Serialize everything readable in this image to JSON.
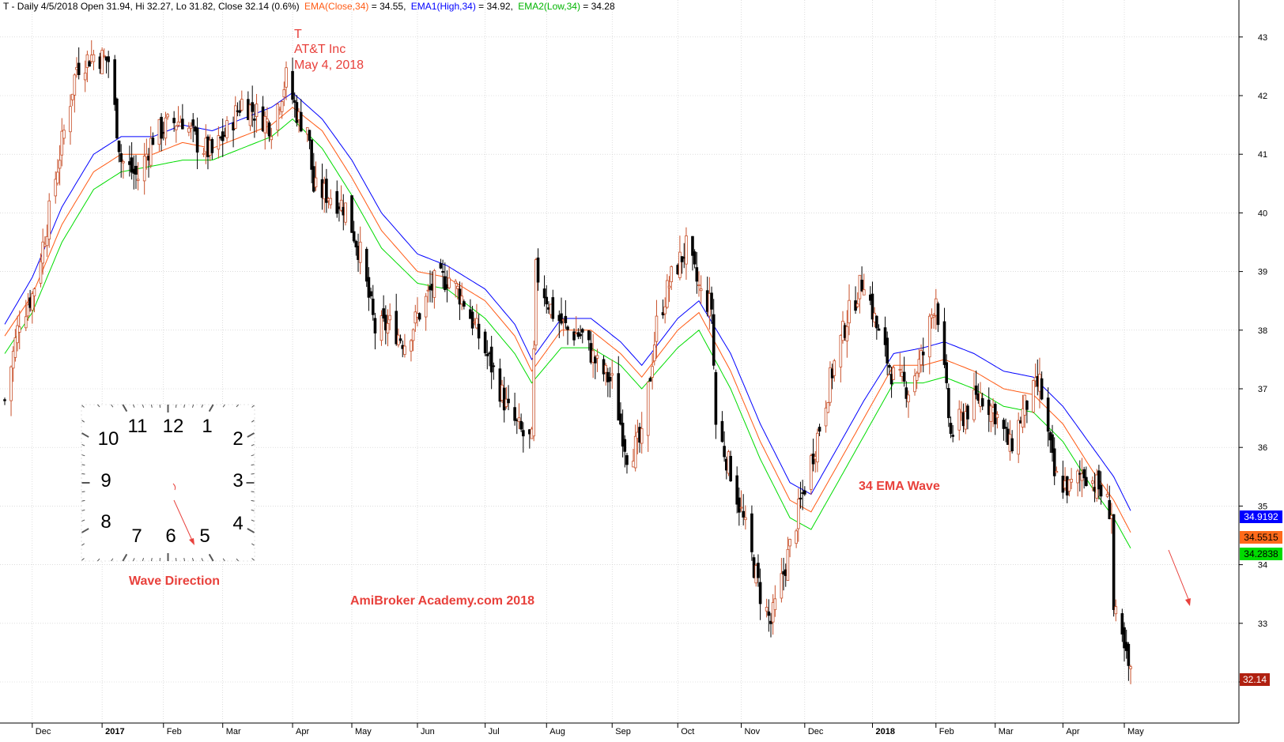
{
  "header": {
    "ticker_info": "T - Daily 4/5/2018 Open 31.94, Hi 32.27, Lo 31.82, Close 32.14 (0.6%)",
    "ema_close_label": "EMA(Close,34)",
    "ema_close_value": " = 34.55,",
    "ema_high_label": "EMA1(High,34)",
    "ema_high_value": " = 34.92,",
    "ema_low_label": "EMA2(Low,34)",
    "ema_low_value": " = 34.28"
  },
  "annotations": {
    "symbol": "T",
    "company": "AT&T Inc",
    "date": "May 4, 2018",
    "wave_label": "34 EMA Wave",
    "watermark": "AmiBroker Academy.com   2018",
    "wave_direction": "Wave Direction"
  },
  "clock": {
    "numbers": [
      "12",
      "1",
      "2",
      "3",
      "4",
      "5",
      "6",
      "7",
      "8",
      "9",
      "10",
      "11"
    ]
  },
  "badges": {
    "ema_high": "34.9192",
    "ema_close": "34.5515",
    "ema_low": "34.2838",
    "last_close": "32.14"
  },
  "colors": {
    "ema_high": "#0000ff",
    "ema_close": "#ff5a14",
    "ema_low": "#00dc00",
    "up_candle": "#c8502a",
    "down_candle": "#000000",
    "annotation": "#e8413c",
    "badge_high": "#0000ff",
    "badge_close": "#ff6a1a",
    "badge_low": "#00dc00",
    "badge_last": "#b02010"
  },
  "chart_data": {
    "type": "candlestick",
    "symbol": "T",
    "ylim": [
      31.4,
      43.4
    ],
    "grid": true,
    "y_ticks": [
      32,
      33,
      34,
      35,
      36,
      37,
      38,
      39,
      40,
      41,
      42,
      43
    ],
    "x_ticks": [
      {
        "date": "2016-12-01",
        "label": "Dec",
        "bold": false
      },
      {
        "date": "2017-01-03",
        "label": "2017",
        "bold": true
      },
      {
        "date": "2017-02-01",
        "label": "Feb",
        "bold": false
      },
      {
        "date": "2017-03-01",
        "label": "Mar",
        "bold": false
      },
      {
        "date": "2017-04-03",
        "label": "Apr",
        "bold": false
      },
      {
        "date": "2017-05-01",
        "label": "May",
        "bold": false
      },
      {
        "date": "2017-06-01",
        "label": "Jun",
        "bold": false
      },
      {
        "date": "2017-07-03",
        "label": "Jul",
        "bold": false
      },
      {
        "date": "2017-08-01",
        "label": "Aug",
        "bold": false
      },
      {
        "date": "2017-09-01",
        "label": "Sep",
        "bold": false
      },
      {
        "date": "2017-10-02",
        "label": "Oct",
        "bold": false
      },
      {
        "date": "2017-11-01",
        "label": "Nov",
        "bold": false
      },
      {
        "date": "2017-12-01",
        "label": "Dec",
        "bold": false
      },
      {
        "date": "2018-01-02",
        "label": "2018",
        "bold": true
      },
      {
        "date": "2018-02-01",
        "label": "Feb",
        "bold": false
      },
      {
        "date": "2018-03-01",
        "label": "Mar",
        "bold": false
      },
      {
        "date": "2018-04-02",
        "label": "Apr",
        "bold": false
      },
      {
        "date": "2018-05-01",
        "label": "May",
        "bold": false
      }
    ],
    "x_range": [
      "2016-11-18",
      "2018-06-01"
    ],
    "close_path": [
      [
        "2016-11-18",
        36.8
      ],
      [
        "2016-11-25",
        38.2
      ],
      [
        "2016-12-01",
        38.6
      ],
      [
        "2016-12-08",
        39.8
      ],
      [
        "2016-12-15",
        41.2
      ],
      [
        "2016-12-22",
        42.5
      ],
      [
        "2016-12-30",
        42.7
      ],
      [
        "2017-01-06",
        42.6
      ],
      [
        "2017-01-12",
        40.9
      ],
      [
        "2017-01-20",
        40.6
      ],
      [
        "2017-01-27",
        41.3
      ],
      [
        "2017-02-03",
        41.5
      ],
      [
        "2017-02-10",
        41.6
      ],
      [
        "2017-02-17",
        41.2
      ],
      [
        "2017-02-24",
        41.0
      ],
      [
        "2017-03-03",
        41.4
      ],
      [
        "2017-03-10",
        41.9
      ],
      [
        "2017-03-17",
        41.7
      ],
      [
        "2017-03-24",
        41.5
      ],
      [
        "2017-03-31",
        42.3
      ],
      [
        "2017-04-06",
        41.6
      ],
      [
        "2017-04-10",
        41.5
      ],
      [
        "2017-04-13",
        40.4
      ],
      [
        "2017-04-21",
        40.3
      ],
      [
        "2017-04-28",
        40.1
      ],
      [
        "2017-05-05",
        39.3
      ],
      [
        "2017-05-12",
        38.0
      ],
      [
        "2017-05-19",
        38.1
      ],
      [
        "2017-05-26",
        37.8
      ],
      [
        "2017-06-02",
        38.3
      ],
      [
        "2017-06-09",
        38.8
      ],
      [
        "2017-06-16",
        38.9
      ],
      [
        "2017-06-23",
        38.5
      ],
      [
        "2017-06-30",
        37.9
      ],
      [
        "2017-07-07",
        37.3
      ],
      [
        "2017-07-14",
        36.6
      ],
      [
        "2017-07-21",
        36.2
      ],
      [
        "2017-07-25",
        36.1
      ],
      [
        "2017-07-27",
        39.0
      ],
      [
        "2017-08-04",
        38.3
      ],
      [
        "2017-08-11",
        38.0
      ],
      [
        "2017-08-18",
        37.9
      ],
      [
        "2017-08-25",
        37.4
      ],
      [
        "2017-09-01",
        37.1
      ],
      [
        "2017-09-08",
        35.9
      ],
      [
        "2017-09-15",
        36.1
      ],
      [
        "2017-09-22",
        38.1
      ],
      [
        "2017-09-29",
        38.9
      ],
      [
        "2017-10-06",
        39.4
      ],
      [
        "2017-10-13",
        38.6
      ],
      [
        "2017-10-18",
        38.4
      ],
      [
        "2017-10-20",
        36.4
      ],
      [
        "2017-10-27",
        35.6
      ],
      [
        "2017-11-03",
        34.6
      ],
      [
        "2017-11-10",
        33.5
      ],
      [
        "2017-11-15",
        33.0
      ],
      [
        "2017-11-22",
        34.0
      ],
      [
        "2017-11-30",
        35.2
      ],
      [
        "2017-12-07",
        36.2
      ],
      [
        "2017-12-14",
        37.3
      ],
      [
        "2017-12-21",
        38.2
      ],
      [
        "2017-12-29",
        38.9
      ],
      [
        "2018-01-05",
        37.9
      ],
      [
        "2018-01-12",
        37.2
      ],
      [
        "2018-01-19",
        37.0
      ],
      [
        "2018-01-26",
        37.6
      ],
      [
        "2018-02-01",
        38.6
      ],
      [
        "2018-02-08",
        36.2
      ],
      [
        "2018-02-15",
        36.6
      ],
      [
        "2018-02-22",
        36.9
      ],
      [
        "2018-03-01",
        36.6
      ],
      [
        "2018-03-08",
        36.0
      ],
      [
        "2018-03-15",
        36.7
      ],
      [
        "2018-03-22",
        37.1
      ],
      [
        "2018-03-29",
        35.5
      ],
      [
        "2018-04-05",
        35.3
      ],
      [
        "2018-04-12",
        35.6
      ],
      [
        "2018-04-19",
        35.3
      ],
      [
        "2018-04-25",
        34.9
      ],
      [
        "2018-04-26",
        33.2
      ],
      [
        "2018-05-01",
        32.5
      ],
      [
        "2018-05-04",
        32.1
      ]
    ],
    "ema_high_path": [
      [
        "2016-11-18",
        38.1
      ],
      [
        "2016-12-01",
        38.9
      ],
      [
        "2016-12-15",
        40.1
      ],
      [
        "2016-12-30",
        41.0
      ],
      [
        "2017-01-12",
        41.3
      ],
      [
        "2017-01-27",
        41.3
      ],
      [
        "2017-02-10",
        41.5
      ],
      [
        "2017-02-24",
        41.4
      ],
      [
        "2017-03-10",
        41.6
      ],
      [
        "2017-03-24",
        41.8
      ],
      [
        "2017-04-03",
        42.05
      ],
      [
        "2017-04-17",
        41.6
      ],
      [
        "2017-05-01",
        40.9
      ],
      [
        "2017-05-15",
        40.0
      ],
      [
        "2017-06-01",
        39.3
      ],
      [
        "2017-06-15",
        39.1
      ],
      [
        "2017-07-03",
        38.7
      ],
      [
        "2017-07-17",
        38.1
      ],
      [
        "2017-07-25",
        37.5
      ],
      [
        "2017-08-08",
        38.2
      ],
      [
        "2017-08-22",
        38.2
      ],
      [
        "2017-09-05",
        37.8
      ],
      [
        "2017-09-15",
        37.4
      ],
      [
        "2017-10-02",
        38.2
      ],
      [
        "2017-10-12",
        38.5
      ],
      [
        "2017-10-27",
        37.6
      ],
      [
        "2017-11-10",
        36.4
      ],
      [
        "2017-11-24",
        35.4
      ],
      [
        "2017-12-04",
        35.2
      ],
      [
        "2017-12-15",
        35.9
      ],
      [
        "2017-12-29",
        36.8
      ],
      [
        "2018-01-12",
        37.6
      ],
      [
        "2018-01-26",
        37.7
      ],
      [
        "2018-02-05",
        37.8
      ],
      [
        "2018-02-19",
        37.6
      ],
      [
        "2018-03-05",
        37.3
      ],
      [
        "2018-03-19",
        37.2
      ],
      [
        "2018-04-02",
        36.7
      ],
      [
        "2018-04-16",
        36.0
      ],
      [
        "2018-04-26",
        35.5
      ],
      [
        "2018-05-04",
        34.92
      ]
    ],
    "ema_close_path": [
      [
        "2016-11-18",
        37.9
      ],
      [
        "2016-12-01",
        38.6
      ],
      [
        "2016-12-15",
        39.8
      ],
      [
        "2016-12-30",
        40.7
      ],
      [
        "2017-01-12",
        41.0
      ],
      [
        "2017-01-27",
        41.0
      ],
      [
        "2017-02-10",
        41.2
      ],
      [
        "2017-02-24",
        41.1
      ],
      [
        "2017-03-10",
        41.3
      ],
      [
        "2017-03-24",
        41.5
      ],
      [
        "2017-04-03",
        41.8
      ],
      [
        "2017-04-17",
        41.4
      ],
      [
        "2017-05-01",
        40.6
      ],
      [
        "2017-05-15",
        39.7
      ],
      [
        "2017-06-01",
        39.0
      ],
      [
        "2017-06-15",
        38.9
      ],
      [
        "2017-07-03",
        38.5
      ],
      [
        "2017-07-17",
        37.9
      ],
      [
        "2017-07-25",
        37.3
      ],
      [
        "2017-08-08",
        38.0
      ],
      [
        "2017-08-22",
        38.0
      ],
      [
        "2017-09-05",
        37.6
      ],
      [
        "2017-09-15",
        37.2
      ],
      [
        "2017-10-02",
        38.0
      ],
      [
        "2017-10-12",
        38.3
      ],
      [
        "2017-10-27",
        37.3
      ],
      [
        "2017-11-10",
        36.1
      ],
      [
        "2017-11-24",
        35.1
      ],
      [
        "2017-12-04",
        34.9
      ],
      [
        "2017-12-15",
        35.6
      ],
      [
        "2017-12-29",
        36.5
      ],
      [
        "2018-01-12",
        37.4
      ],
      [
        "2018-01-26",
        37.4
      ],
      [
        "2018-02-05",
        37.5
      ],
      [
        "2018-02-19",
        37.3
      ],
      [
        "2018-03-05",
        37.0
      ],
      [
        "2018-03-19",
        36.9
      ],
      [
        "2018-04-02",
        36.4
      ],
      [
        "2018-04-16",
        35.6
      ],
      [
        "2018-04-26",
        35.1
      ],
      [
        "2018-05-04",
        34.55
      ]
    ],
    "ema_low_path": [
      [
        "2016-11-18",
        37.6
      ],
      [
        "2016-12-01",
        38.3
      ],
      [
        "2016-12-15",
        39.5
      ],
      [
        "2016-12-30",
        40.4
      ],
      [
        "2017-01-12",
        40.7
      ],
      [
        "2017-01-27",
        40.8
      ],
      [
        "2017-02-10",
        40.9
      ],
      [
        "2017-02-24",
        40.9
      ],
      [
        "2017-03-10",
        41.1
      ],
      [
        "2017-03-24",
        41.3
      ],
      [
        "2017-04-03",
        41.6
      ],
      [
        "2017-04-17",
        41.1
      ],
      [
        "2017-05-01",
        40.3
      ],
      [
        "2017-05-15",
        39.4
      ],
      [
        "2017-06-01",
        38.8
      ],
      [
        "2017-06-15",
        38.7
      ],
      [
        "2017-07-03",
        38.2
      ],
      [
        "2017-07-17",
        37.6
      ],
      [
        "2017-07-25",
        37.1
      ],
      [
        "2017-08-08",
        37.7
      ],
      [
        "2017-08-22",
        37.7
      ],
      [
        "2017-09-05",
        37.4
      ],
      [
        "2017-09-15",
        37.0
      ],
      [
        "2017-10-02",
        37.7
      ],
      [
        "2017-10-12",
        38.0
      ],
      [
        "2017-10-27",
        37.0
      ],
      [
        "2017-11-10",
        35.8
      ],
      [
        "2017-11-24",
        34.8
      ],
      [
        "2017-12-04",
        34.6
      ],
      [
        "2017-12-15",
        35.3
      ],
      [
        "2017-12-29",
        36.2
      ],
      [
        "2018-01-12",
        37.1
      ],
      [
        "2018-01-26",
        37.1
      ],
      [
        "2018-02-05",
        37.2
      ],
      [
        "2018-02-19",
        37.0
      ],
      [
        "2018-03-05",
        36.7
      ],
      [
        "2018-03-19",
        36.6
      ],
      [
        "2018-04-02",
        36.1
      ],
      [
        "2018-04-16",
        35.3
      ],
      [
        "2018-04-26",
        34.8
      ],
      [
        "2018-05-04",
        34.28
      ]
    ]
  }
}
